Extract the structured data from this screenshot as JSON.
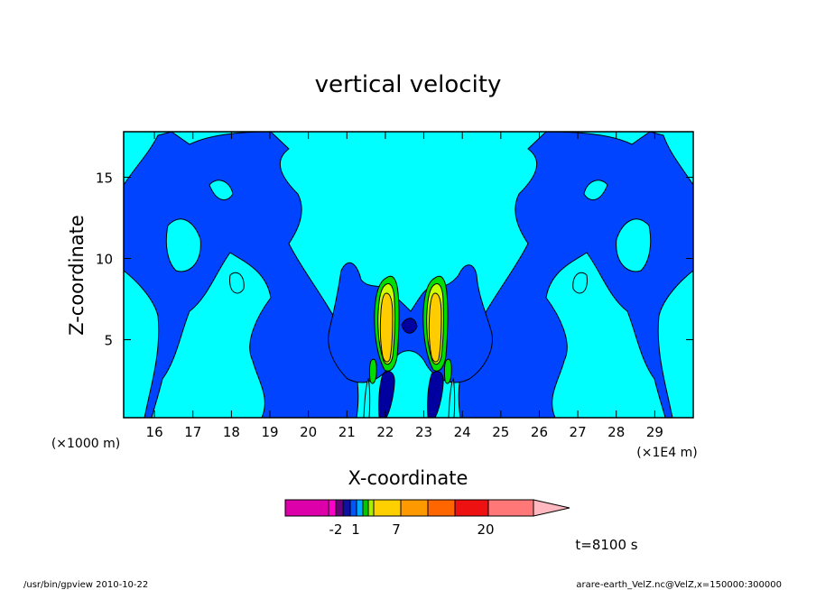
{
  "chart_data": {
    "type": "heatmap",
    "title": "vertical velocity",
    "xlabel": "X-coordinate",
    "ylabel": "Z-coordinate",
    "x_unit": "(×1E4 m)",
    "y_unit": "(×1000 m)",
    "xlim": [
      15.2,
      30.0
    ],
    "ylim": [
      0.2,
      17.8
    ],
    "x_ticks": [
      16,
      17,
      18,
      19,
      20,
      21,
      22,
      23,
      24,
      25,
      26,
      27,
      28,
      29
    ],
    "y_ticks": [
      5,
      10,
      15
    ],
    "legend": {
      "position": "bottom",
      "colors": [
        "#dd00aa",
        "#ff00cc",
        "#6a007a",
        "#1010a0",
        "#0055ff",
        "#00aaff",
        "#00c800",
        "#aaee00",
        "#ffd000",
        "#ff9900",
        "#ff6600",
        "#ee1111",
        "#ff7777",
        "#ffb8c0"
      ],
      "labels": [
        "-2",
        "1",
        "7",
        "20"
      ]
    },
    "time_label": "t=8100 s",
    "colors": {
      "background_field": "#00ffff",
      "negative_region": "#0044ff",
      "dark_core": "#0000a0",
      "positive_green": "#00dd00",
      "positive_yellowgreen": "#ccff00",
      "positive_orange": "#ffb000",
      "updraft_core": "#ffcc00"
    }
  },
  "footer": {
    "left": "/usr/bin/gpview  2010-10-22",
    "right": "arare-earth_VelZ.nc@VelZ,x=150000:300000"
  }
}
